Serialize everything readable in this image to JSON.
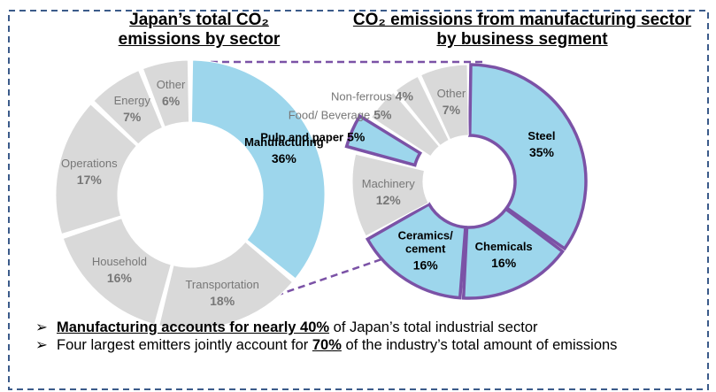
{
  "chart_data": [
    {
      "type": "donut",
      "title": "Japan’s total CO₂ emissions by sector",
      "categories": [
        "Manufacturing",
        "Transportation",
        "Household",
        "Operations",
        "Energy",
        "Other"
      ],
      "values": [
        36,
        18,
        16,
        17,
        7,
        6
      ],
      "value_labels": [
        "36%",
        "18%",
        "16%",
        "17%",
        "7%",
        "6%"
      ],
      "colors": [
        "#9dd6ec",
        "#d9d9d9",
        "#d9d9d9",
        "#d9d9d9",
        "#d9d9d9",
        "#d9d9d9"
      ],
      "edge_colors": [
        null,
        null,
        null,
        null,
        null,
        null
      ]
    },
    {
      "type": "donut",
      "title": "CO₂ emissions from manufacturing sector by business segment",
      "categories": [
        "Steel",
        "Chemicals",
        "Ceramics/ cement",
        "Machinery",
        "Pulp and paper",
        "Food/ Beverage",
        "Non-ferrous",
        "Other"
      ],
      "values": [
        35,
        16,
        16,
        12,
        5,
        5,
        4,
        7
      ],
      "value_labels": [
        "35%",
        "16%",
        "16%",
        "12%",
        "5%",
        "5%",
        "4%",
        "7%"
      ],
      "colors": [
        "#9dd6ec",
        "#9dd6ec",
        "#9dd6ec",
        "#d9d9d9",
        "#9dd6ec",
        "#d9d9d9",
        "#d9d9d9",
        "#d9d9d9"
      ],
      "edge_colors": [
        "#7b52a6",
        "#7b52a6",
        "#7b52a6",
        null,
        "#7b52a6",
        null,
        null,
        null
      ]
    }
  ],
  "notes": [
    {
      "emphasis": "Manufacturing accounts for nearly 40%",
      "rest": " of Japan’s total industrial sector"
    },
    {
      "lead": "Four largest emitters jointly account for ",
      "emphasis": "70%",
      "rest": " of the industry’s total amount of emissions"
    }
  ]
}
